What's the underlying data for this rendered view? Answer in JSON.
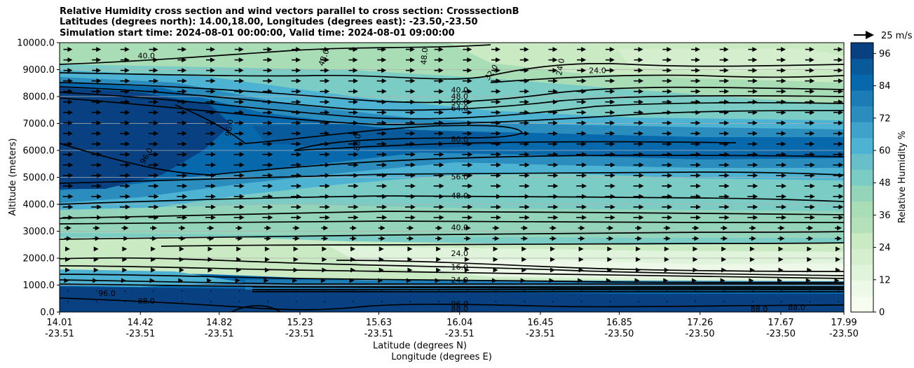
{
  "title_lines": [
    "Relative Humidity cross section and wind vectors parallel to cross section: CrosssectionB",
    "Latitudes (degrees north): 14.00,18.00, Longitudes (degrees east): -23.50,-23.50",
    "Simulation start time: 2024-08-01 00:00:00, Valid time: 2024-08-01 09:00:00"
  ],
  "chart_data": {
    "type": "heatmap",
    "title": "Relative Humidity cross section and wind vectors parallel to cross section: CrosssectionB",
    "ylabel": "Altitude (meters)",
    "xlabel": "Latitude (degrees N)",
    "xlabel2": "Longitude (degrees E)",
    "ylim": [
      0,
      10000
    ],
    "y_ticks": [
      "0.0",
      "1000.0",
      "2000.0",
      "3000.0",
      "4000.0",
      "5000.0",
      "6000.0",
      "7000.0",
      "8000.0",
      "9000.0",
      "10000.0"
    ],
    "x_ticks": [
      {
        "lat": "14.01",
        "lon": "-23.51"
      },
      {
        "lat": "14.42",
        "lon": "-23.51"
      },
      {
        "lat": "14.82",
        "lon": "-23.51"
      },
      {
        "lat": "15.23",
        "lon": "-23.51"
      },
      {
        "lat": "15.63",
        "lon": "-23.51"
      },
      {
        "lat": "16.04",
        "lon": "-23.51"
      },
      {
        "lat": "16.45",
        "lon": "-23.51"
      },
      {
        "lat": "16.85",
        "lon": "-23.50"
      },
      {
        "lat": "17.26",
        "lon": "-23.50"
      },
      {
        "lat": "17.67",
        "lon": "-23.50"
      },
      {
        "lat": "17.99",
        "lon": "-23.50"
      }
    ],
    "colorbar": {
      "label": "Relative Humidity %",
      "ticks": [
        "0",
        "12",
        "24",
        "36",
        "48",
        "60",
        "72",
        "84",
        "96"
      ],
      "range": [
        0,
        100
      ],
      "colors": [
        "#f7fcf0",
        "#eef8e8",
        "#e0f3db",
        "#d4eece",
        "#c9eac3",
        "#b4e1ba",
        "#a8ddb5",
        "#94d4ba",
        "#7bccc4",
        "#68bfca",
        "#4eb3d3",
        "#3fa2cb",
        "#2b8cbe",
        "#1d7bb5",
        "#0868ac",
        "#085a9a",
        "#084081"
      ]
    },
    "quiver_key": "25 m/s",
    "contour_labels": [
      {
        "text": "40.0",
        "lat": 14.45,
        "z": 9520,
        "rot": 0
      },
      {
        "text": "48.0",
        "lat": 15.35,
        "z": 9450,
        "rot": -70
      },
      {
        "text": "48.0",
        "lat": 15.86,
        "z": 9500,
        "rot": -85
      },
      {
        "text": "32.0",
        "lat": 16.2,
        "z": 8900,
        "rot": -55
      },
      {
        "text": "24.0",
        "lat": 16.55,
        "z": 9100,
        "rot": -80
      },
      {
        "text": "24.0",
        "lat": 16.74,
        "z": 8980,
        "rot": 0
      },
      {
        "text": "40.0",
        "lat": 16.04,
        "z": 8250,
        "rot": 0
      },
      {
        "text": "48.0",
        "lat": 16.04,
        "z": 8010,
        "rot": 0
      },
      {
        "text": "56.0",
        "lat": 16.04,
        "z": 7790,
        "rot": 0
      },
      {
        "text": "64.0",
        "lat": 16.04,
        "z": 7570,
        "rot": 0
      },
      {
        "text": "96.0",
        "lat": 14.87,
        "z": 6840,
        "rot": -80
      },
      {
        "text": "96.0",
        "lat": 14.45,
        "z": 5800,
        "rot": -60
      },
      {
        "text": "88.0",
        "lat": 15.52,
        "z": 6300,
        "rot": -85
      },
      {
        "text": "80.0",
        "lat": 16.04,
        "z": 6420,
        "rot": 0
      },
      {
        "text": "56.0",
        "lat": 16.04,
        "z": 5020,
        "rot": 0
      },
      {
        "text": "48.0",
        "lat": 16.04,
        "z": 4320,
        "rot": 0
      },
      {
        "text": "40.0",
        "lat": 16.04,
        "z": 3140,
        "rot": 0
      },
      {
        "text": "24.0",
        "lat": 16.04,
        "z": 2180,
        "rot": 0
      },
      {
        "text": "16.0",
        "lat": 16.04,
        "z": 1670,
        "rot": 0
      },
      {
        "text": "24.0",
        "lat": 16.04,
        "z": 1200,
        "rot": 0
      },
      {
        "text": "96.0",
        "lat": 16.04,
        "z": 300,
        "rot": 0
      },
      {
        "text": "88.0",
        "lat": 16.04,
        "z": 130,
        "rot": 0
      },
      {
        "text": "96.0",
        "lat": 14.25,
        "z": 700,
        "rot": 0
      },
      {
        "text": "88.0",
        "lat": 14.45,
        "z": 420,
        "rot": 0
      },
      {
        "text": "88.0",
        "lat": 17.56,
        "z": 120,
        "rot": 0
      },
      {
        "text": "88.0",
        "lat": 17.75,
        "z": 180,
        "rot": 0
      }
    ]
  }
}
